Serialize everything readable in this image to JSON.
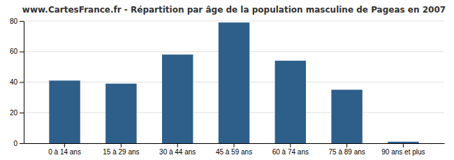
{
  "chart_data": {
    "type": "bar",
    "title": "www.CartesFrance.fr - Répartition par âge de la population masculine de Pageas en 2007",
    "categories": [
      "0 à 14 ans",
      "15 à 29 ans",
      "30 à 44 ans",
      "45 à 59 ans",
      "60 à 74 ans",
      "75 à 89 ans",
      "90 ans et plus"
    ],
    "values": [
      41,
      39,
      58,
      79,
      54,
      35,
      1
    ],
    "color": "#2e5f8a",
    "ylim": [
      0,
      80
    ],
    "yticks": [
      0,
      20,
      40,
      60,
      80
    ],
    "grid": true
  }
}
